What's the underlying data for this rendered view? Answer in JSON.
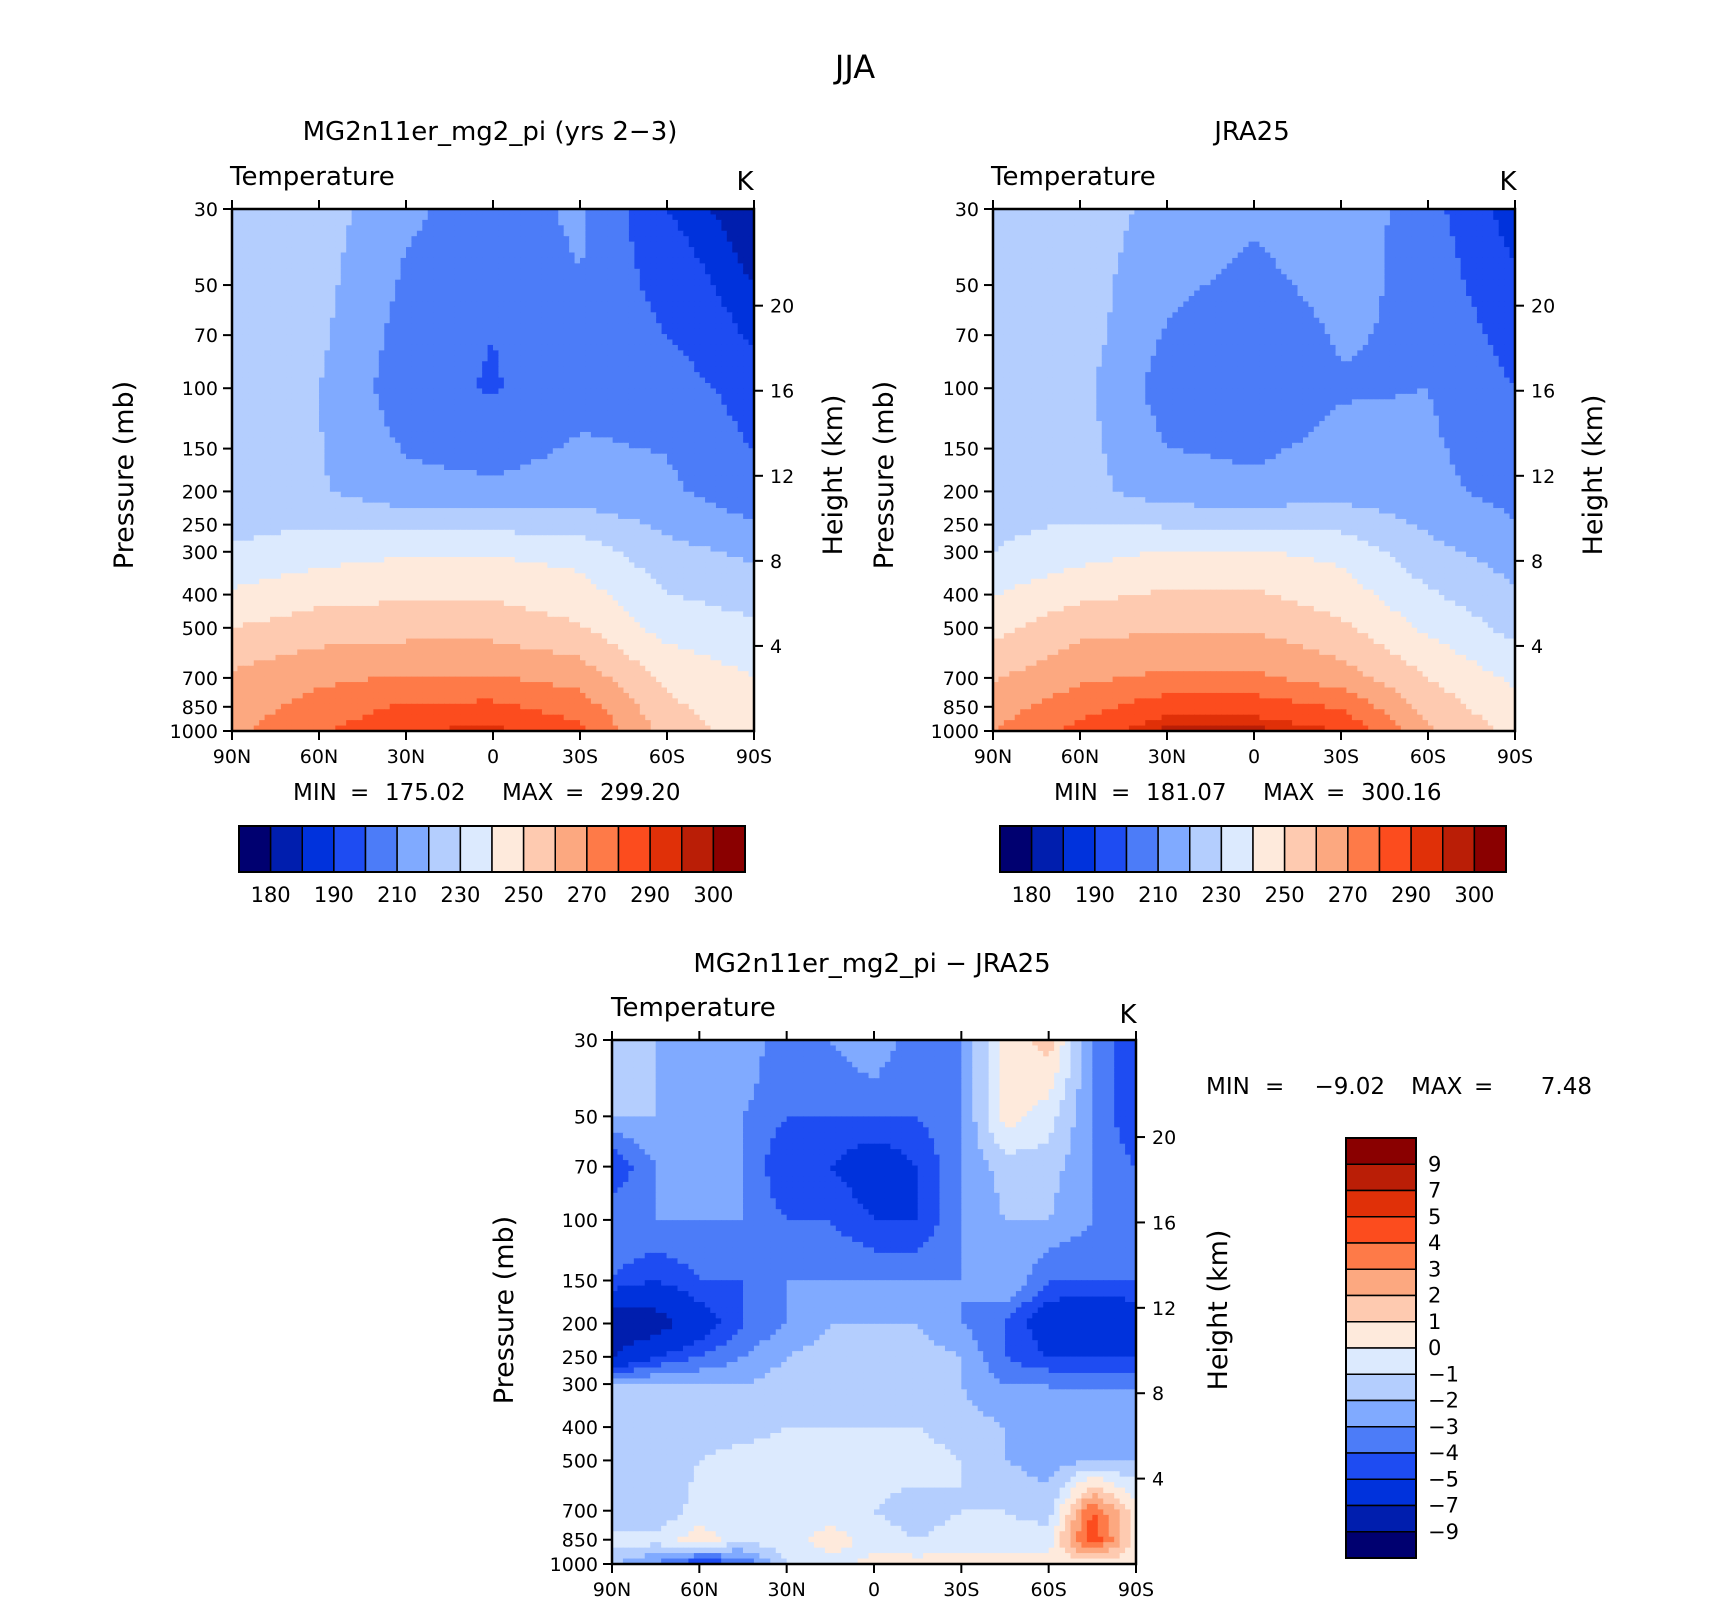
{
  "figure": {
    "title": "JJA",
    "units": "K",
    "variable": "Temperature"
  },
  "panels": [
    {
      "id": "model",
      "title": "MG2n11er_mg2_pi (yrs 2−3)",
      "subtitle": "Temperature",
      "units": "K",
      "ylabel": "Pressure (mb)",
      "ylabel_right": "Height (km)",
      "min_label": "MIN",
      "max_label": "MAX",
      "min": "175.02",
      "max": "299.20"
    },
    {
      "id": "obs",
      "title": "JRA25",
      "subtitle": "Temperature",
      "units": "K",
      "ylabel": "Pressure (mb)",
      "ylabel_right": "Height (km)",
      "min_label": "MIN",
      "max_label": "MAX",
      "min": "181.07",
      "max": "300.16"
    },
    {
      "id": "diff",
      "title": "MG2n11er_mg2_pi − JRA25",
      "subtitle": "Temperature",
      "units": "K",
      "ylabel": "Pressure (mb)",
      "ylabel_right": "Height (km)",
      "min_label": "MIN",
      "max_label": "MAX",
      "min": "−9.02",
      "max": "7.48"
    }
  ],
  "chart_data": [
    {
      "type": "heatmap",
      "panel": "MG2n11er_mg2_pi (yrs 2−3)",
      "x_ticks": [
        "90N",
        "60N",
        "30N",
        "0",
        "30S",
        "60S",
        "90S"
      ],
      "x_values": [
        90,
        60,
        30,
        0,
        -30,
        -60,
        -90
      ],
      "pressure_ticks": [
        30,
        50,
        70,
        100,
        150,
        200,
        250,
        300,
        400,
        500,
        700,
        850,
        1000
      ],
      "height_ticks": [
        4,
        8,
        12,
        16,
        20
      ],
      "y_scale": "log-pressure",
      "ylim": [
        1000,
        30
      ],
      "latitudes": [
        90,
        60,
        30,
        0,
        -30,
        -60,
        -90
      ],
      "levels": [
        30,
        70,
        100,
        200,
        300,
        500,
        700,
        1000
      ],
      "values": [
        [
          225,
          225,
          212,
          205,
          212,
          190,
          180
        ],
        [
          224,
          222,
          206,
          200,
          208,
          200,
          188
        ],
        [
          222,
          220,
          204,
          199,
          207,
          206,
          195
        ],
        [
          223,
          221,
          213,
          212,
          214,
          212,
          203
        ],
        [
          231,
          236,
          239,
          239,
          236,
          223,
          218
        ],
        [
          250,
          255,
          256,
          256,
          251,
          236,
          232
        ],
        [
          262,
          268,
          271,
          271,
          266,
          248,
          240
        ],
        [
          268,
          278,
          290,
          292,
          283,
          256,
          244
        ]
      ],
      "contour_levels": [
        180,
        185,
        190,
        200,
        210,
        220,
        230,
        240,
        250,
        260,
        270,
        280,
        290,
        295,
        300
      ],
      "colorbar_labels": [
        "180",
        "190",
        "210",
        "230",
        "250",
        "270",
        "290",
        "300"
      ],
      "colors": [
        "#000070",
        "#001eae",
        "#0032dc",
        "#1e4cf2",
        "#4c7cf8",
        "#80aaff",
        "#b4cefe",
        "#dceafe",
        "#feeadc",
        "#fecab0",
        "#fca880",
        "#fe7a48",
        "#fc4c1e",
        "#e03008",
        "#ba1e06",
        "#8a0000"
      ]
    },
    {
      "type": "heatmap",
      "panel": "JRA25",
      "x_ticks": [
        "90N",
        "60N",
        "30N",
        "0",
        "30S",
        "60S",
        "90S"
      ],
      "x_values": [
        90,
        60,
        30,
        0,
        -30,
        -60,
        -90
      ],
      "pressure_ticks": [
        30,
        50,
        70,
        100,
        150,
        200,
        250,
        300,
        400,
        500,
        700,
        850,
        1000
      ],
      "height_ticks": [
        4,
        8,
        12,
        16,
        20
      ],
      "y_scale": "log-pressure",
      "ylim": [
        1000,
        30
      ],
      "latitudes": [
        90,
        60,
        30,
        0,
        -30,
        -60,
        -90
      ],
      "levels": [
        30,
        70,
        100,
        200,
        300,
        500,
        700,
        1000
      ],
      "values": [
        [
          227,
          225,
          217,
          212,
          217,
          204,
          185
        ],
        [
          229,
          225,
          209,
          204,
          211,
          208,
          196
        ],
        [
          226,
          223,
          205,
          201,
          209,
          210,
          200
        ],
        [
          225,
          224,
          214,
          213,
          216,
          213,
          206
        ],
        [
          230,
          236,
          241,
          241,
          237,
          223,
          215
        ],
        [
          247,
          257,
          259,
          259,
          252,
          238,
          227
        ],
        [
          259,
          268,
          272,
          272,
          265,
          250,
          238
        ],
        [
          270,
          283,
          297,
          297,
          290,
          262,
          246
        ]
      ],
      "contour_levels": [
        180,
        185,
        190,
        200,
        210,
        220,
        230,
        240,
        250,
        260,
        270,
        280,
        290,
        295,
        300
      ],
      "colorbar_labels": [
        "180",
        "190",
        "210",
        "230",
        "250",
        "270",
        "290",
        "300"
      ],
      "colors": [
        "#000070",
        "#001eae",
        "#0032dc",
        "#1e4cf2",
        "#4c7cf8",
        "#80aaff",
        "#b4cefe",
        "#dceafe",
        "#feeadc",
        "#fecab0",
        "#fca880",
        "#fe7a48",
        "#fc4c1e",
        "#e03008",
        "#ba1e06",
        "#8a0000"
      ]
    },
    {
      "type": "heatmap",
      "panel": "MG2n11er_mg2_pi − JRA25",
      "x_ticks": [
        "90N",
        "60N",
        "30N",
        "0",
        "30S",
        "60S",
        "90S"
      ],
      "x_values": [
        90,
        60,
        30,
        0,
        -30,
        -60,
        -90
      ],
      "pressure_ticks": [
        30,
        50,
        70,
        100,
        150,
        200,
        250,
        300,
        400,
        500,
        700,
        850,
        1000
      ],
      "height_ticks": [
        4,
        8,
        12,
        16,
        20
      ],
      "y_scale": "log-pressure",
      "ylim": [
        1000,
        30
      ],
      "latitudes": [
        90,
        75,
        60,
        45,
        30,
        15,
        0,
        -15,
        -30,
        -45,
        -60,
        -75,
        -90
      ],
      "levels": [
        30,
        50,
        70,
        100,
        150,
        200,
        250,
        300,
        400,
        500,
        700,
        850,
        1000
      ],
      "values": [
        [
          -1,
          -2,
          -2,
          -2,
          -4,
          -3,
          -2,
          -4,
          -3,
          0.3,
          1.5,
          -3,
          -5
        ],
        [
          -2,
          -2,
          -3,
          -3,
          -4,
          -4,
          -4,
          -4,
          -3,
          0.5,
          -0.5,
          -3,
          -5
        ],
        [
          -5,
          -3,
          -3,
          -3,
          -5,
          -5,
          -6,
          -5,
          -3,
          -1.5,
          -1.5,
          -3,
          -4
        ],
        [
          -3,
          -3,
          -3,
          -3,
          -4,
          -4,
          -5,
          -5,
          -3,
          -2,
          -2,
          -3,
          -4
        ],
        [
          -4,
          -5,
          -4,
          -4,
          -3,
          -3,
          -3,
          -3,
          -3,
          -2,
          -4,
          -4,
          -4
        ],
        [
          -9,
          -8,
          -6,
          -4,
          -3,
          -2,
          -2,
          -2,
          -3,
          -4,
          -6,
          -7,
          -6
        ],
        [
          -7,
          -5,
          -4,
          -3,
          -2,
          -1.5,
          -1.5,
          -1.5,
          -2,
          -4,
          -5,
          -5,
          -5
        ],
        [
          -2,
          -2,
          -2,
          -2,
          -1.5,
          -1.5,
          -1.5,
          -1.5,
          -2,
          -3,
          -3,
          -3,
          -3
        ],
        [
          -2,
          -2,
          -1.5,
          -1.5,
          -1,
          -1,
          -1,
          -1,
          -1.5,
          -2,
          -3,
          -3,
          -3
        ],
        [
          -2,
          -2,
          -1,
          -0.5,
          -0.5,
          -0.5,
          -0.5,
          -0.5,
          -1,
          -2,
          -2.5,
          -2,
          -2
        ],
        [
          -2,
          -2,
          -0.5,
          -0.5,
          -0.5,
          -0.5,
          -1,
          -1.5,
          -1,
          -1,
          -1.5,
          4,
          0.5
        ],
        [
          -0.5,
          -0.5,
          0.5,
          -0.5,
          -0.5,
          0.5,
          -0.5,
          -1,
          -0.5,
          -0.5,
          -0.5,
          5,
          0.5
        ],
        [
          -2,
          -3,
          -5,
          -4,
          -1,
          -0.5,
          0.3,
          0.5,
          0.3,
          0.5,
          0.5,
          0.5,
          0.5
        ]
      ],
      "contour_levels": [
        -9,
        -7,
        -5,
        -4,
        -3,
        -2,
        -1,
        0,
        1,
        2,
        3,
        4,
        5,
        7,
        9
      ],
      "colorbar_labels": [
        "9",
        "7",
        "5",
        "4",
        "3",
        "2",
        "1",
        "0",
        "−1",
        "−2",
        "−3",
        "−4",
        "−5",
        "−7",
        "−9"
      ],
      "colors": [
        "#000070",
        "#001eae",
        "#0032dc",
        "#1e4cf2",
        "#4c7cf8",
        "#80aaff",
        "#b4cefe",
        "#dceafe",
        "#feeadc",
        "#fecab0",
        "#fca880",
        "#fe7a48",
        "#fc4c1e",
        "#e03008",
        "#ba1e06",
        "#8a0000"
      ]
    }
  ]
}
